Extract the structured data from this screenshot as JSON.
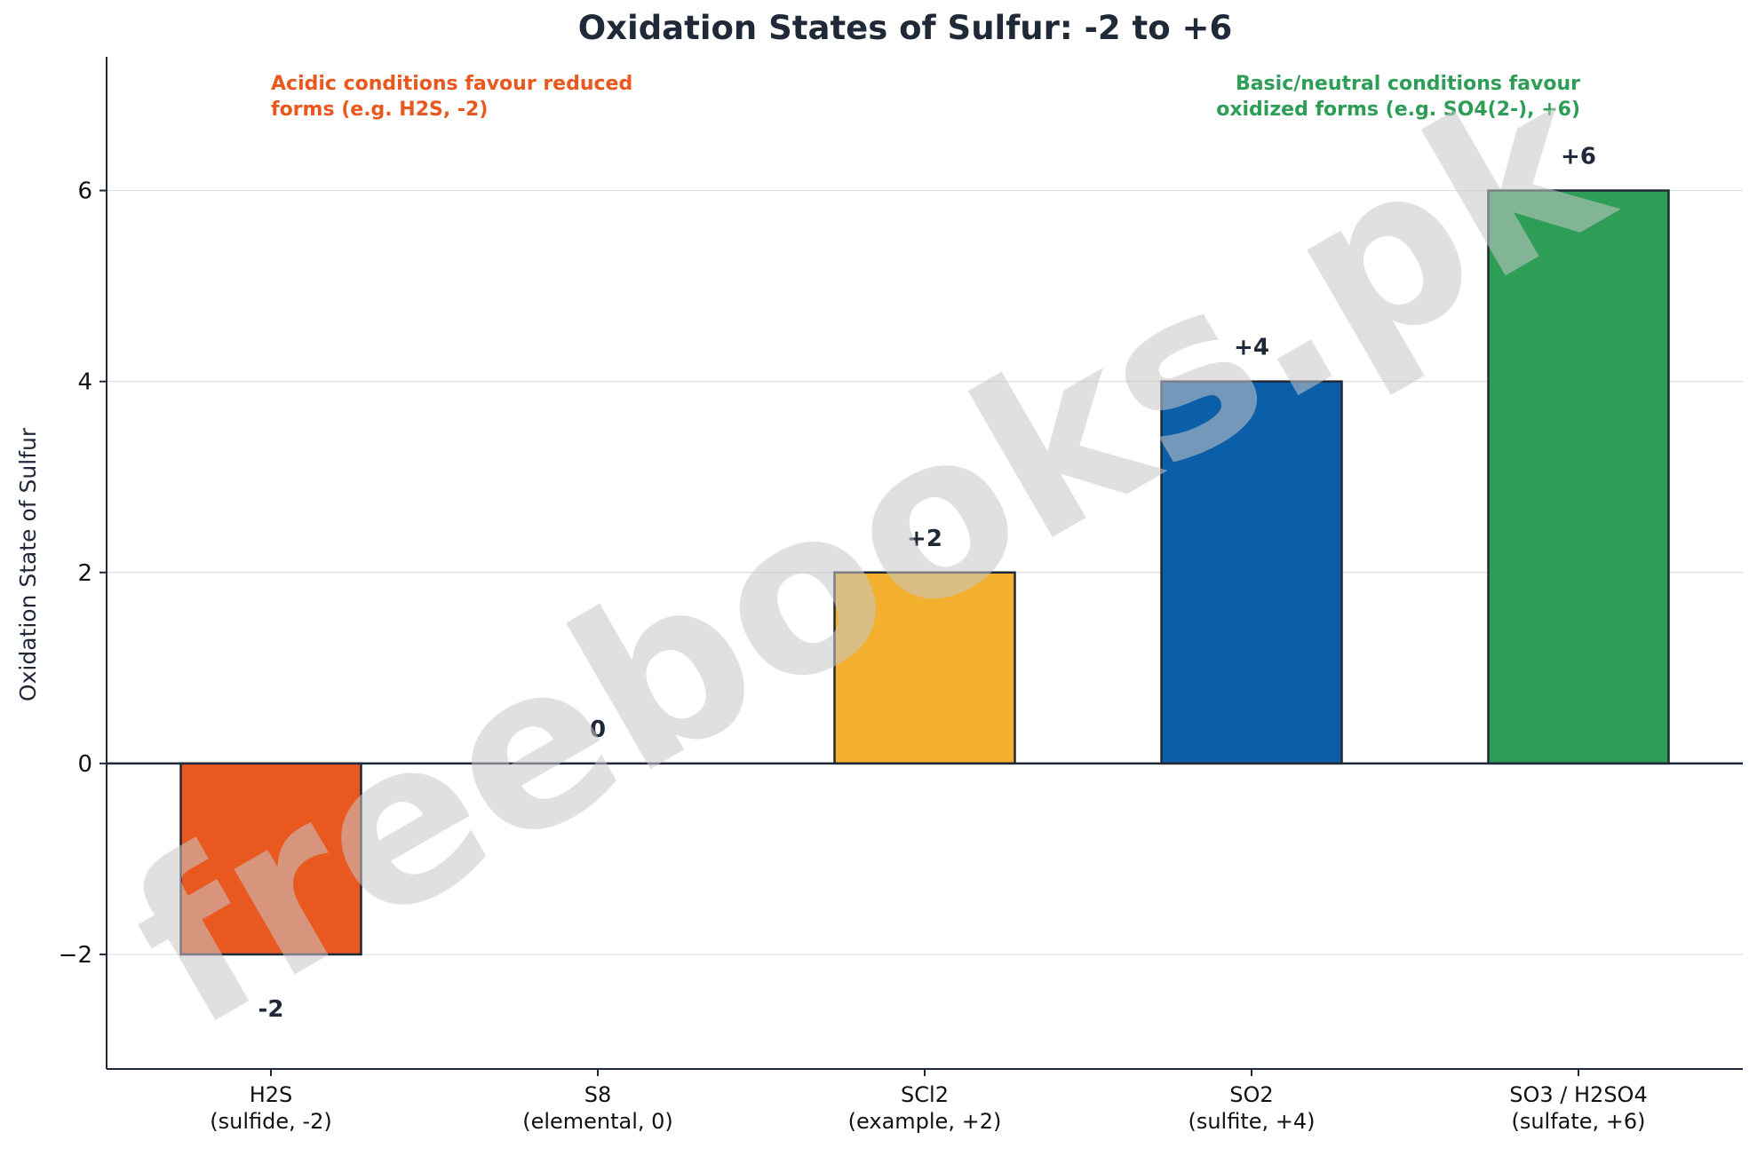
{
  "chart_data": {
    "type": "bar",
    "title": "Oxidation States of Sulfur: -2 to +6",
    "xlabel": "",
    "ylabel": "Oxidation State of Sulfur",
    "ylim": [
      -3.2,
      7.4
    ],
    "yticks": [
      -2,
      0,
      2,
      4,
      6
    ],
    "ytick_labels": [
      "−2",
      "0",
      "2",
      "4",
      "6"
    ],
    "grid": "horizontal",
    "zero_line": true,
    "categories": [
      {
        "line1": "H2S",
        "line2": "(sulfide, -2)"
      },
      {
        "line1": "S8",
        "line2": "(elemental, 0)"
      },
      {
        "line1": "SCl2",
        "line2": "(example, +2)"
      },
      {
        "line1": "SO2",
        "line2": "(sulfite, +4)"
      },
      {
        "line1": "SO3 / H2SO4",
        "line2": "(sulfate, +6)"
      }
    ],
    "values": [
      -2,
      0,
      2,
      4,
      6
    ],
    "value_labels": [
      "-2",
      "0",
      "+2",
      "+4",
      "+6"
    ],
    "bar_colors": [
      "#e8581f",
      "#e8581f",
      "#f2b02e",
      "#0b5fa8",
      "#2e9e57"
    ],
    "annotations": [
      {
        "lines": [
          "Acidic conditions favour reduced",
          "forms (e.g. H2S, -2)"
        ],
        "color": "#e8581f",
        "align": "left"
      },
      {
        "lines": [
          "Basic/neutral conditions favour",
          "oxidized forms (e.g. SO4(2-), +6)"
        ],
        "color": "#2e9e57",
        "align": "right"
      }
    ]
  },
  "watermark": "freebooks.pk",
  "colors": {
    "text": "#1f2937",
    "axis": "#1f2937",
    "grid": "#dddddd",
    "watermark": "#c8c8c8",
    "bar_edge": "#1f2937"
  }
}
